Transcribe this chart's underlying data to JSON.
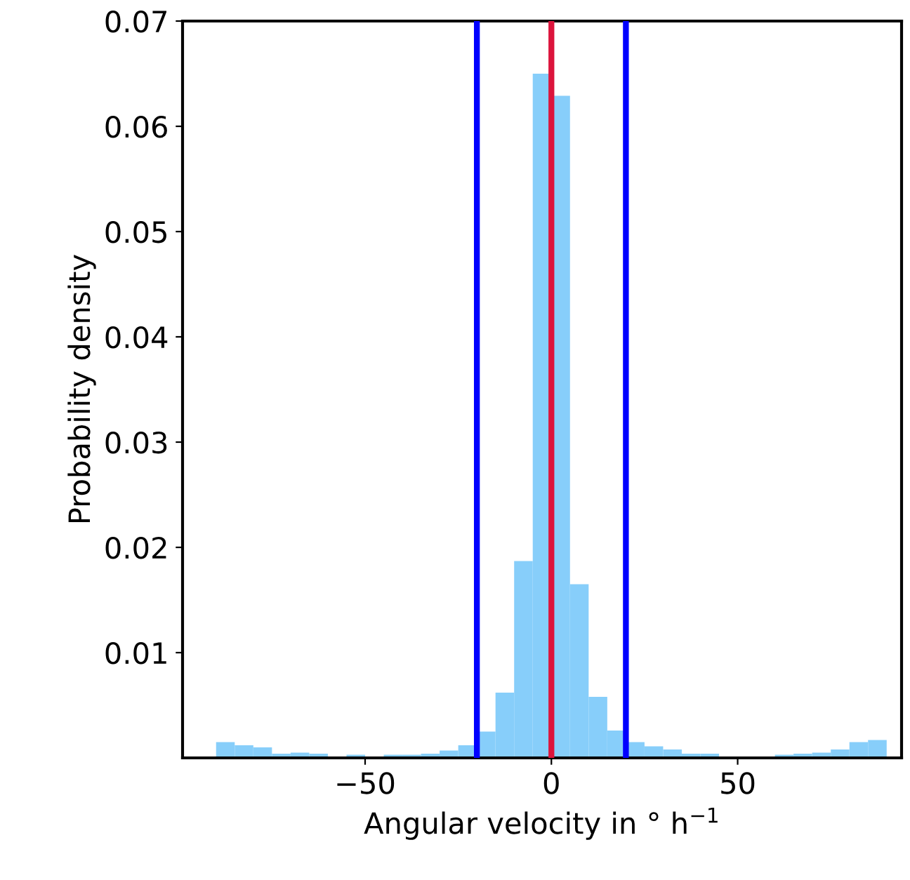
{
  "chart_data": {
    "type": "histogram",
    "xlabel": "Angular velocity in ° h$^{−1}$",
    "ylabel": "Probability density",
    "bins": [
      -90,
      -85,
      -80,
      -75,
      -70,
      -65,
      -60,
      -55,
      -50,
      -45,
      -40,
      -35,
      -30,
      -25,
      -20,
      -15,
      -10,
      -5,
      0,
      5,
      10,
      15,
      20,
      25,
      30,
      35,
      40,
      45,
      50,
      55,
      60,
      65,
      70,
      75,
      80,
      85,
      90
    ],
    "values": [
      0.0015,
      0.0012,
      0.001,
      0.0004,
      0.0005,
      0.0004,
      0.0001,
      0.0003,
      0.0001,
      0.0003,
      0.0003,
      0.0004,
      0.0007,
      0.0012,
      0.0025,
      0.0062,
      0.0187,
      0.065,
      0.0629,
      0.0165,
      0.0058,
      0.0026,
      0.0015,
      0.0011,
      0.0008,
      0.0004,
      0.0004,
      null,
      null,
      null,
      0.0003,
      0.0004,
      0.0005,
      0.0008,
      0.0015,
      0.0017
    ],
    "color": "#87cefa",
    "xlim": [
      -99,
      94
    ],
    "ylim": [
      0,
      0.07
    ],
    "xticks": [
      -50,
      0,
      50
    ],
    "yticks": [
      0.01,
      0.02,
      0.03,
      0.04,
      0.05,
      0.06,
      0.07
    ],
    "ref_lines": [
      {
        "axis": "x",
        "value": -20,
        "color": "#0000ff"
      },
      {
        "axis": "x",
        "value": 0,
        "color": "#dc143c"
      },
      {
        "axis": "x",
        "value": 20,
        "color": "#0000ff"
      }
    ],
    "grid": false
  }
}
